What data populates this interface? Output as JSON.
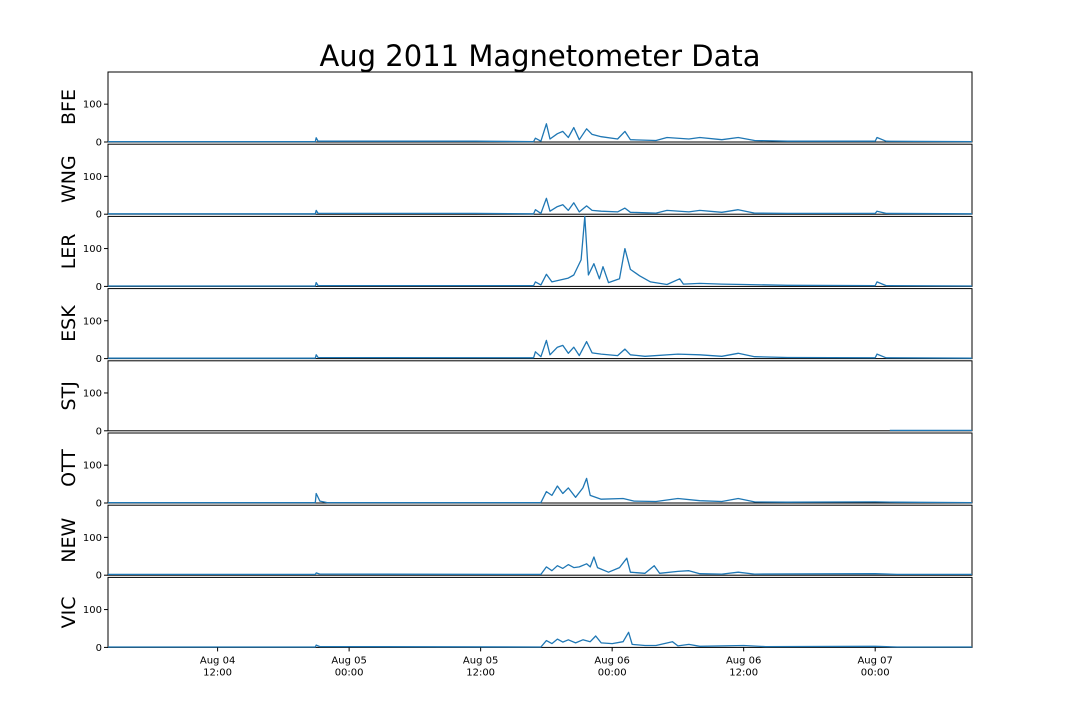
{
  "chart_data": {
    "type": "line",
    "title": "Aug 2011 Magnetometer Data",
    "x_range": [
      "2011-08-04T02:00",
      "2011-08-07T08:50"
    ],
    "y_range": [
      0,
      185
    ],
    "yticks": [
      0,
      100
    ],
    "xticks": [
      {
        "t": "2011-08-04T12:00",
        "line1": "Aug 04",
        "line2": "12:00"
      },
      {
        "t": "2011-08-05T00:00",
        "line1": "Aug 05",
        "line2": "00:00"
      },
      {
        "t": "2011-08-05T12:00",
        "line1": "Aug 05",
        "line2": "12:00"
      },
      {
        "t": "2011-08-06T00:00",
        "line1": "Aug 06",
        "line2": "00:00"
      },
      {
        "t": "2011-08-06T12:00",
        "line1": "Aug 06",
        "line2": "12:00"
      },
      {
        "t": "2011-08-07T00:00",
        "line1": "Aug 07",
        "line2": "00:00"
      }
    ],
    "line_color": "#1f77b4",
    "series": [
      {
        "name": "BFE",
        "points": [
          [
            "2011-08-04T02:00",
            1
          ],
          [
            "2011-08-04T20:55",
            1
          ],
          [
            "2011-08-04T21:00",
            11
          ],
          [
            "2011-08-04T21:10",
            2
          ],
          [
            "2011-08-05T11:30",
            2
          ],
          [
            "2011-08-05T16:50",
            1
          ],
          [
            "2011-08-05T17:00",
            10
          ],
          [
            "2011-08-05T17:30",
            2
          ],
          [
            "2011-08-05T18:00",
            48
          ],
          [
            "2011-08-05T18:20",
            8
          ],
          [
            "2011-08-05T19:00",
            22
          ],
          [
            "2011-08-05T19:30",
            28
          ],
          [
            "2011-08-05T20:00",
            12
          ],
          [
            "2011-08-05T20:30",
            38
          ],
          [
            "2011-08-05T21:00",
            6
          ],
          [
            "2011-08-05T21:40",
            35
          ],
          [
            "2011-08-05T22:10",
            20
          ],
          [
            "2011-08-05T23:00",
            14
          ],
          [
            "2011-08-06T00:30",
            8
          ],
          [
            "2011-08-06T01:10",
            28
          ],
          [
            "2011-08-06T01:40",
            6
          ],
          [
            "2011-08-06T04:00",
            4
          ],
          [
            "2011-08-06T05:00",
            12
          ],
          [
            "2011-08-06T07:00",
            8
          ],
          [
            "2011-08-06T08:00",
            12
          ],
          [
            "2011-08-06T10:00",
            6
          ],
          [
            "2011-08-06T11:30",
            12
          ],
          [
            "2011-08-06T13:00",
            4
          ],
          [
            "2011-08-06T16:00",
            2
          ],
          [
            "2011-08-07T00:00",
            2
          ],
          [
            "2011-08-07T00:10",
            12
          ],
          [
            "2011-08-07T01:00",
            2
          ],
          [
            "2011-08-07T08:50",
            1
          ]
        ]
      },
      {
        "name": "WNG",
        "points": [
          [
            "2011-08-04T02:00",
            1
          ],
          [
            "2011-08-04T20:55",
            1
          ],
          [
            "2011-08-04T21:00",
            10
          ],
          [
            "2011-08-04T21:10",
            2
          ],
          [
            "2011-08-05T11:30",
            2
          ],
          [
            "2011-08-05T16:50",
            1
          ],
          [
            "2011-08-05T17:00",
            12
          ],
          [
            "2011-08-05T17:30",
            2
          ],
          [
            "2011-08-05T18:00",
            42
          ],
          [
            "2011-08-05T18:20",
            8
          ],
          [
            "2011-08-05T19:00",
            20
          ],
          [
            "2011-08-05T19:30",
            25
          ],
          [
            "2011-08-05T20:00",
            10
          ],
          [
            "2011-08-05T20:30",
            30
          ],
          [
            "2011-08-05T21:00",
            6
          ],
          [
            "2011-08-05T21:40",
            22
          ],
          [
            "2011-08-05T22:10",
            10
          ],
          [
            "2011-08-05T23:00",
            8
          ],
          [
            "2011-08-06T00:30",
            6
          ],
          [
            "2011-08-06T01:10",
            16
          ],
          [
            "2011-08-06T01:40",
            5
          ],
          [
            "2011-08-06T04:00",
            3
          ],
          [
            "2011-08-06T05:00",
            10
          ],
          [
            "2011-08-06T07:00",
            6
          ],
          [
            "2011-08-06T08:00",
            10
          ],
          [
            "2011-08-06T10:00",
            5
          ],
          [
            "2011-08-06T11:30",
            12
          ],
          [
            "2011-08-06T13:00",
            3
          ],
          [
            "2011-08-06T16:00",
            2
          ],
          [
            "2011-08-07T00:00",
            2
          ],
          [
            "2011-08-07T00:10",
            8
          ],
          [
            "2011-08-07T01:00",
            2
          ],
          [
            "2011-08-07T08:50",
            1
          ]
        ]
      },
      {
        "name": "LER",
        "points": [
          [
            "2011-08-04T02:00",
            1
          ],
          [
            "2011-08-04T20:55",
            1
          ],
          [
            "2011-08-04T21:00",
            10
          ],
          [
            "2011-08-04T21:10",
            2
          ],
          [
            "2011-08-05T16:50",
            2
          ],
          [
            "2011-08-05T17:00",
            12
          ],
          [
            "2011-08-05T17:30",
            4
          ],
          [
            "2011-08-05T18:00",
            32
          ],
          [
            "2011-08-05T18:30",
            12
          ],
          [
            "2011-08-05T20:00",
            22
          ],
          [
            "2011-08-05T20:30",
            30
          ],
          [
            "2011-08-05T21:10",
            70
          ],
          [
            "2011-08-05T21:30",
            185
          ],
          [
            "2011-08-05T21:50",
            30
          ],
          [
            "2011-08-05T22:20",
            60
          ],
          [
            "2011-08-05T22:50",
            20
          ],
          [
            "2011-08-05T23:10",
            52
          ],
          [
            "2011-08-05T23:40",
            10
          ],
          [
            "2011-08-06T00:40",
            20
          ],
          [
            "2011-08-06T01:10",
            100
          ],
          [
            "2011-08-06T01:40",
            45
          ],
          [
            "2011-08-06T02:30",
            28
          ],
          [
            "2011-08-06T03:30",
            12
          ],
          [
            "2011-08-06T05:00",
            5
          ],
          [
            "2011-08-06T06:10",
            20
          ],
          [
            "2011-08-06T06:30",
            6
          ],
          [
            "2011-08-06T08:00",
            8
          ],
          [
            "2011-08-06T10:00",
            6
          ],
          [
            "2011-08-06T12:00",
            5
          ],
          [
            "2011-08-06T16:00",
            3
          ],
          [
            "2011-08-07T00:00",
            2
          ],
          [
            "2011-08-07T00:10",
            12
          ],
          [
            "2011-08-07T01:00",
            2
          ],
          [
            "2011-08-07T08:50",
            1
          ]
        ]
      },
      {
        "name": "ESK",
        "points": [
          [
            "2011-08-04T02:00",
            1
          ],
          [
            "2011-08-04T20:55",
            1
          ],
          [
            "2011-08-04T21:00",
            10
          ],
          [
            "2011-08-04T21:10",
            3
          ],
          [
            "2011-08-05T16:50",
            2
          ],
          [
            "2011-08-05T17:00",
            18
          ],
          [
            "2011-08-05T17:30",
            5
          ],
          [
            "2011-08-05T18:00",
            48
          ],
          [
            "2011-08-05T18:20",
            10
          ],
          [
            "2011-08-05T19:00",
            30
          ],
          [
            "2011-08-05T19:30",
            35
          ],
          [
            "2011-08-05T20:00",
            14
          ],
          [
            "2011-08-05T20:30",
            30
          ],
          [
            "2011-08-05T21:00",
            8
          ],
          [
            "2011-08-05T21:40",
            45
          ],
          [
            "2011-08-05T22:10",
            15
          ],
          [
            "2011-08-05T23:00",
            12
          ],
          [
            "2011-08-06T00:30",
            8
          ],
          [
            "2011-08-06T01:10",
            25
          ],
          [
            "2011-08-06T01:40",
            10
          ],
          [
            "2011-08-06T03:00",
            6
          ],
          [
            "2011-08-06T06:00",
            12
          ],
          [
            "2011-08-06T08:00",
            10
          ],
          [
            "2011-08-06T10:00",
            6
          ],
          [
            "2011-08-06T11:30",
            14
          ],
          [
            "2011-08-06T13:00",
            5
          ],
          [
            "2011-08-06T16:00",
            3
          ],
          [
            "2011-08-07T00:00",
            2
          ],
          [
            "2011-08-07T00:10",
            12
          ],
          [
            "2011-08-07T01:00",
            2
          ],
          [
            "2011-08-07T08:50",
            1
          ]
        ]
      },
      {
        "name": "STJ",
        "points": [
          [
            "2011-08-07T01:20",
            1
          ],
          [
            "2011-08-07T08:50",
            1
          ]
        ]
      },
      {
        "name": "OTT",
        "points": [
          [
            "2011-08-04T02:00",
            1
          ],
          [
            "2011-08-04T20:55",
            1
          ],
          [
            "2011-08-04T21:00",
            25
          ],
          [
            "2011-08-04T21:20",
            5
          ],
          [
            "2011-08-04T22:00",
            1
          ],
          [
            "2011-08-05T17:30",
            1
          ],
          [
            "2011-08-05T18:00",
            30
          ],
          [
            "2011-08-05T18:30",
            20
          ],
          [
            "2011-08-05T19:00",
            45
          ],
          [
            "2011-08-05T19:30",
            25
          ],
          [
            "2011-08-05T20:00",
            40
          ],
          [
            "2011-08-05T20:40",
            15
          ],
          [
            "2011-08-05T21:20",
            40
          ],
          [
            "2011-08-05T21:40",
            65
          ],
          [
            "2011-08-05T22:00",
            20
          ],
          [
            "2011-08-05T23:00",
            10
          ],
          [
            "2011-08-06T01:00",
            12
          ],
          [
            "2011-08-06T02:00",
            5
          ],
          [
            "2011-08-06T04:00",
            4
          ],
          [
            "2011-08-06T06:00",
            12
          ],
          [
            "2011-08-06T08:00",
            6
          ],
          [
            "2011-08-06T10:00",
            4
          ],
          [
            "2011-08-06T11:30",
            12
          ],
          [
            "2011-08-06T13:00",
            3
          ],
          [
            "2011-08-06T16:00",
            2
          ],
          [
            "2011-08-07T00:00",
            3
          ],
          [
            "2011-08-07T02:00",
            2
          ],
          [
            "2011-08-07T08:50",
            1
          ]
        ]
      },
      {
        "name": "NEW",
        "points": [
          [
            "2011-08-04T02:00",
            2
          ],
          [
            "2011-08-04T20:55",
            2
          ],
          [
            "2011-08-04T21:00",
            6
          ],
          [
            "2011-08-04T21:20",
            3
          ],
          [
            "2011-08-05T17:30",
            2
          ],
          [
            "2011-08-05T18:00",
            22
          ],
          [
            "2011-08-05T18:30",
            12
          ],
          [
            "2011-08-05T19:00",
            25
          ],
          [
            "2011-08-05T19:30",
            18
          ],
          [
            "2011-08-05T20:00",
            28
          ],
          [
            "2011-08-05T20:30",
            20
          ],
          [
            "2011-08-05T21:00",
            22
          ],
          [
            "2011-08-05T21:40",
            30
          ],
          [
            "2011-08-05T22:00",
            22
          ],
          [
            "2011-08-05T22:20",
            48
          ],
          [
            "2011-08-05T22:40",
            20
          ],
          [
            "2011-08-05T23:40",
            8
          ],
          [
            "2011-08-06T00:40",
            20
          ],
          [
            "2011-08-06T01:20",
            45
          ],
          [
            "2011-08-06T01:40",
            8
          ],
          [
            "2011-08-06T03:00",
            5
          ],
          [
            "2011-08-06T03:50",
            25
          ],
          [
            "2011-08-06T04:20",
            5
          ],
          [
            "2011-08-06T06:00",
            10
          ],
          [
            "2011-08-06T07:00",
            12
          ],
          [
            "2011-08-06T08:00",
            4
          ],
          [
            "2011-08-06T10:00",
            3
          ],
          [
            "2011-08-06T11:30",
            8
          ],
          [
            "2011-08-06T13:00",
            3
          ],
          [
            "2011-08-07T00:00",
            4
          ],
          [
            "2011-08-07T02:00",
            2
          ],
          [
            "2011-08-07T08:50",
            2
          ]
        ]
      },
      {
        "name": "VIC",
        "points": [
          [
            "2011-08-04T02:00",
            1
          ],
          [
            "2011-08-04T20:55",
            1
          ],
          [
            "2011-08-04T21:00",
            6
          ],
          [
            "2011-08-04T21:20",
            2
          ],
          [
            "2011-08-05T17:30",
            1
          ],
          [
            "2011-08-05T18:00",
            18
          ],
          [
            "2011-08-05T18:30",
            10
          ],
          [
            "2011-08-05T19:00",
            22
          ],
          [
            "2011-08-05T19:30",
            14
          ],
          [
            "2011-08-05T20:00",
            20
          ],
          [
            "2011-08-05T20:40",
            12
          ],
          [
            "2011-08-05T21:20",
            20
          ],
          [
            "2011-08-05T22:00",
            15
          ],
          [
            "2011-08-05T22:30",
            30
          ],
          [
            "2011-08-05T23:00",
            12
          ],
          [
            "2011-08-06T00:00",
            10
          ],
          [
            "2011-08-06T01:00",
            15
          ],
          [
            "2011-08-06T01:30",
            40
          ],
          [
            "2011-08-06T01:50",
            8
          ],
          [
            "2011-08-06T03:00",
            5
          ],
          [
            "2011-08-06T04:00",
            5
          ],
          [
            "2011-08-06T05:30",
            15
          ],
          [
            "2011-08-06T06:00",
            4
          ],
          [
            "2011-08-06T07:00",
            8
          ],
          [
            "2011-08-06T08:00",
            3
          ],
          [
            "2011-08-06T12:00",
            5
          ],
          [
            "2011-08-06T14:00",
            2
          ],
          [
            "2011-08-07T00:00",
            3
          ],
          [
            "2011-08-07T02:00",
            1
          ],
          [
            "2011-08-07T08:50",
            1
          ]
        ]
      }
    ]
  }
}
